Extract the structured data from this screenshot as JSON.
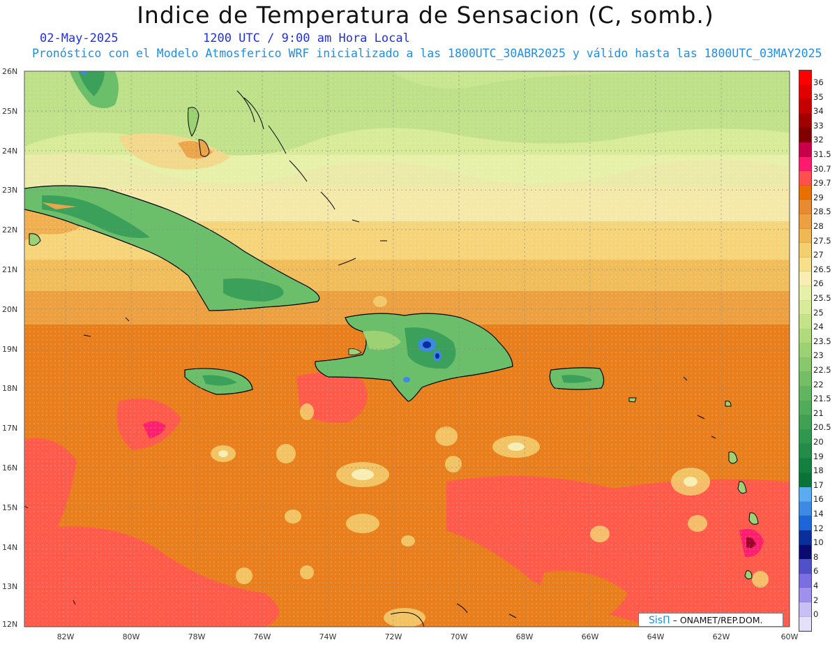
{
  "title": "Indice de Temperatura de Sensacion (C, somb.)",
  "date": "02-May-2025",
  "time": "1200 UTC / 9:00 am Hora Local",
  "forecast": "Pronóstico con el Modelo Atmosferico WRF inicializado a las 1800UTC_30ABR2025 y válido hasta las  1800UTC_03MAY2025",
  "credit": {
    "brand": "SisΠ",
    "text": "ONAMET/REP.DOM."
  },
  "lat_labels": [
    "26N",
    "25N",
    "24N",
    "23N",
    "22N",
    "21N",
    "20N",
    "19N",
    "18N",
    "17N",
    "16N",
    "15N",
    "14N",
    "13N",
    "12N"
  ],
  "lon_labels": [
    "82W",
    "80W",
    "78W",
    "76W",
    "74W",
    "72W",
    "70W",
    "68W",
    "66W",
    "64W",
    "62W",
    "60W"
  ],
  "colorbar": {
    "labels": [
      "36",
      "35",
      "34",
      "33",
      "32",
      "31.5",
      "30.7",
      "29.7",
      "29",
      "28.5",
      "28",
      "27.5",
      "27",
      "26.5",
      "26",
      "25.5",
      "25",
      "24",
      "23.5",
      "23",
      "22.5",
      "22",
      "21.5",
      "21",
      "20.5",
      "20",
      "19",
      "18",
      "17",
      "16",
      "14",
      "12",
      "10",
      "8",
      "6",
      "4",
      "2",
      "0"
    ],
    "colors": [
      "#ff0000",
      "#e00000",
      "#c40000",
      "#a00000",
      "#800000",
      "#c8004a",
      "#ff1a6e",
      "#ff5050",
      "#e87000",
      "#e88a30",
      "#eca040",
      "#f0b855",
      "#f4cf70",
      "#f6e08c",
      "#f8eeb4",
      "#e6f0a8",
      "#d8eb98",
      "#c4e388",
      "#b0db7c",
      "#9cd274",
      "#88c86c",
      "#74bf66",
      "#62b560",
      "#50ab5a",
      "#40a154",
      "#30974e",
      "#228c48",
      "#138040",
      "#0a7438",
      "#5aabf0",
      "#3c8ae6",
      "#1e66d8",
      "#0a2e9a",
      "#0a0a70",
      "#5050c8",
      "#7a6ee0",
      "#9e90ec",
      "#c8c0f4",
      "#e4e0fa"
    ]
  }
}
